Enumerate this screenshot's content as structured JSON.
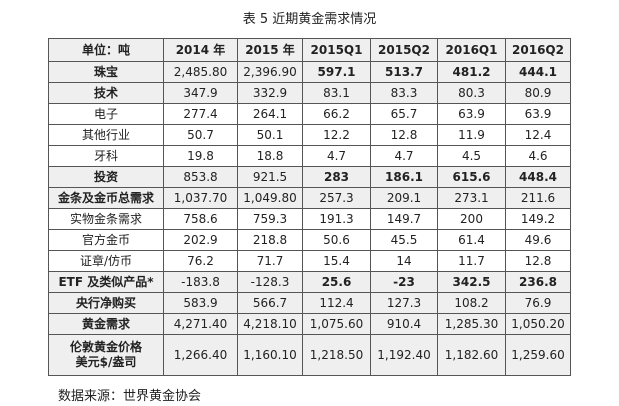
{
  "header": {
    "title": "表 5 近期黄金需求情况"
  },
  "table": {
    "columns": [
      "单位：吨",
      "2014 年",
      "2015 年",
      "2015Q1",
      "2015Q2",
      "2016Q1",
      "2016Q2"
    ],
    "rows": [
      [
        "珠宝",
        "2,485.80",
        "2,396.90",
        "597.1",
        "513.7",
        "481.2",
        "444.1"
      ],
      [
        "技术",
        "347.9",
        "332.9",
        "83.1",
        "83.3",
        "80.3",
        "80.9"
      ],
      [
        "电子",
        "277.4",
        "264.1",
        "66.2",
        "65.7",
        "63.9",
        "63.9"
      ],
      [
        "其他行业",
        "50.7",
        "50.1",
        "12.2",
        "12.8",
        "11.9",
        "12.4"
      ],
      [
        "牙科",
        "19.8",
        "18.8",
        "4.7",
        "4.7",
        "4.5",
        "4.6"
      ],
      [
        "投资",
        "853.8",
        "921.5",
        "283",
        "186.1",
        "615.6",
        "448.4"
      ],
      [
        "金条及金币总需求",
        "1,037.70",
        "1,049.80",
        "257.3",
        "209.1",
        "273.1",
        "211.6"
      ],
      [
        "实物金条需求",
        "758.6",
        "759.3",
        "191.3",
        "149.7",
        "200",
        "149.2"
      ],
      [
        "官方金币",
        "202.9",
        "218.8",
        "50.6",
        "45.5",
        "61.4",
        "49.6"
      ],
      [
        "证章/仿币",
        "76.2",
        "71.7",
        "15.4",
        "14",
        "11.7",
        "12.8"
      ],
      [
        "ETF 及类似产品*",
        "-183.8",
        "-128.3",
        "25.6",
        "-23",
        "342.5",
        "236.8"
      ],
      [
        "央行净购买",
        "583.9",
        "566.7",
        "112.4",
        "127.3",
        "108.2",
        "76.9"
      ],
      [
        "黄金需求",
        "4,271.40",
        "4,218.10",
        "1,075.60",
        "910.4",
        "1,285.30",
        "1,050.20"
      ],
      [
        "伦敦黄金价格\n美元$/盎司",
        "1,266.40",
        "1,160.10",
        "1,218.50",
        "1,192.40",
        "1,182.60",
        "1,259.60"
      ]
    ]
  },
  "footer": {
    "source": "数据来源：世界黄金协会"
  }
}
